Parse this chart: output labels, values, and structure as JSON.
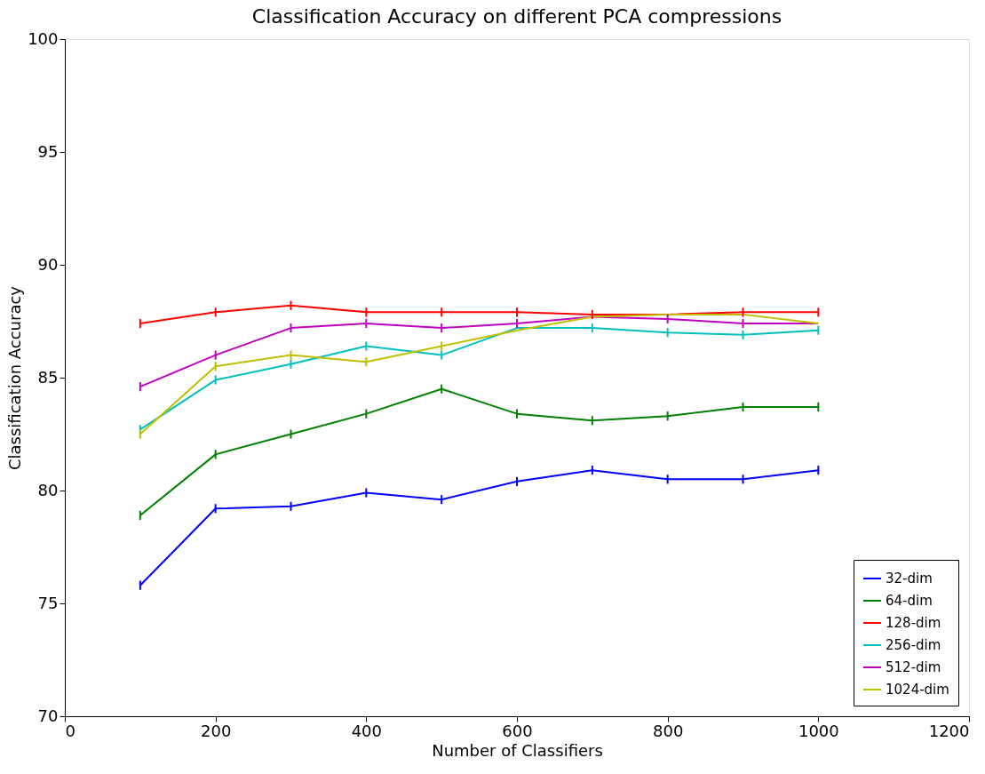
{
  "chart_data": {
    "type": "line",
    "title": "Classification Accuracy on different PCA compressions",
    "xlabel": "Number of Classifiers",
    "ylabel": "Classification Accuracy",
    "x": [
      100,
      200,
      300,
      400,
      500,
      600,
      700,
      800,
      900,
      1000
    ],
    "series": [
      {
        "name": "32-dim",
        "color": "#0000ff",
        "values": [
          75.8,
          79.2,
          79.3,
          79.9,
          79.6,
          80.4,
          80.9,
          80.5,
          80.5,
          80.9
        ],
        "errors": [
          0.2,
          0.2,
          0.2,
          0.2,
          0.2,
          0.2,
          0.2,
          0.2,
          0.2,
          0.2
        ]
      },
      {
        "name": "64-dim",
        "color": "#008000",
        "values": [
          78.9,
          81.6,
          82.5,
          83.4,
          84.5,
          83.4,
          83.1,
          83.3,
          83.7,
          83.7
        ],
        "errors": [
          0.2,
          0.2,
          0.2,
          0.2,
          0.2,
          0.2,
          0.2,
          0.2,
          0.2,
          0.2
        ]
      },
      {
        "name": "128-dim",
        "color": "#ff0000",
        "values": [
          87.4,
          87.9,
          88.2,
          87.9,
          87.9,
          87.9,
          87.8,
          87.8,
          87.9,
          87.9
        ],
        "errors": [
          0.2,
          0.2,
          0.2,
          0.2,
          0.2,
          0.2,
          0.2,
          null,
          0.2,
          0.2
        ]
      },
      {
        "name": "256-dim",
        "color": "#00bfbf",
        "values": [
          82.7,
          84.9,
          85.6,
          86.4,
          86.0,
          87.2,
          87.2,
          87.0,
          86.9,
          87.1
        ],
        "errors": [
          0.2,
          0.2,
          0.2,
          0.2,
          0.2,
          null,
          0.2,
          0.2,
          0.2,
          0.2
        ]
      },
      {
        "name": "512-dim",
        "color": "#bf00bf",
        "values": [
          84.6,
          86.0,
          87.2,
          87.4,
          87.2,
          87.4,
          87.7,
          87.6,
          87.4,
          87.4
        ],
        "errors": [
          0.2,
          0.2,
          0.2,
          0.2,
          0.2,
          0.2,
          null,
          0.2,
          0.2,
          null
        ]
      },
      {
        "name": "1024-dim",
        "color": "#bfbf00",
        "values": [
          82.5,
          85.5,
          86.0,
          85.7,
          86.4,
          87.1,
          87.7,
          87.8,
          87.8,
          87.4
        ],
        "errors": [
          0.2,
          0.2,
          0.2,
          0.2,
          0.2,
          null,
          null,
          null,
          null,
          null
        ]
      }
    ],
    "xlim": [
      0,
      1200
    ],
    "xticks": [
      0,
      200,
      400,
      600,
      800,
      1000,
      1200
    ],
    "ylim": [
      70,
      100
    ],
    "yticks": [
      70,
      75,
      80,
      85,
      90,
      95,
      100
    ],
    "legend": "bottom right",
    "grid": false,
    "marker": "none",
    "line_style": "solid"
  }
}
